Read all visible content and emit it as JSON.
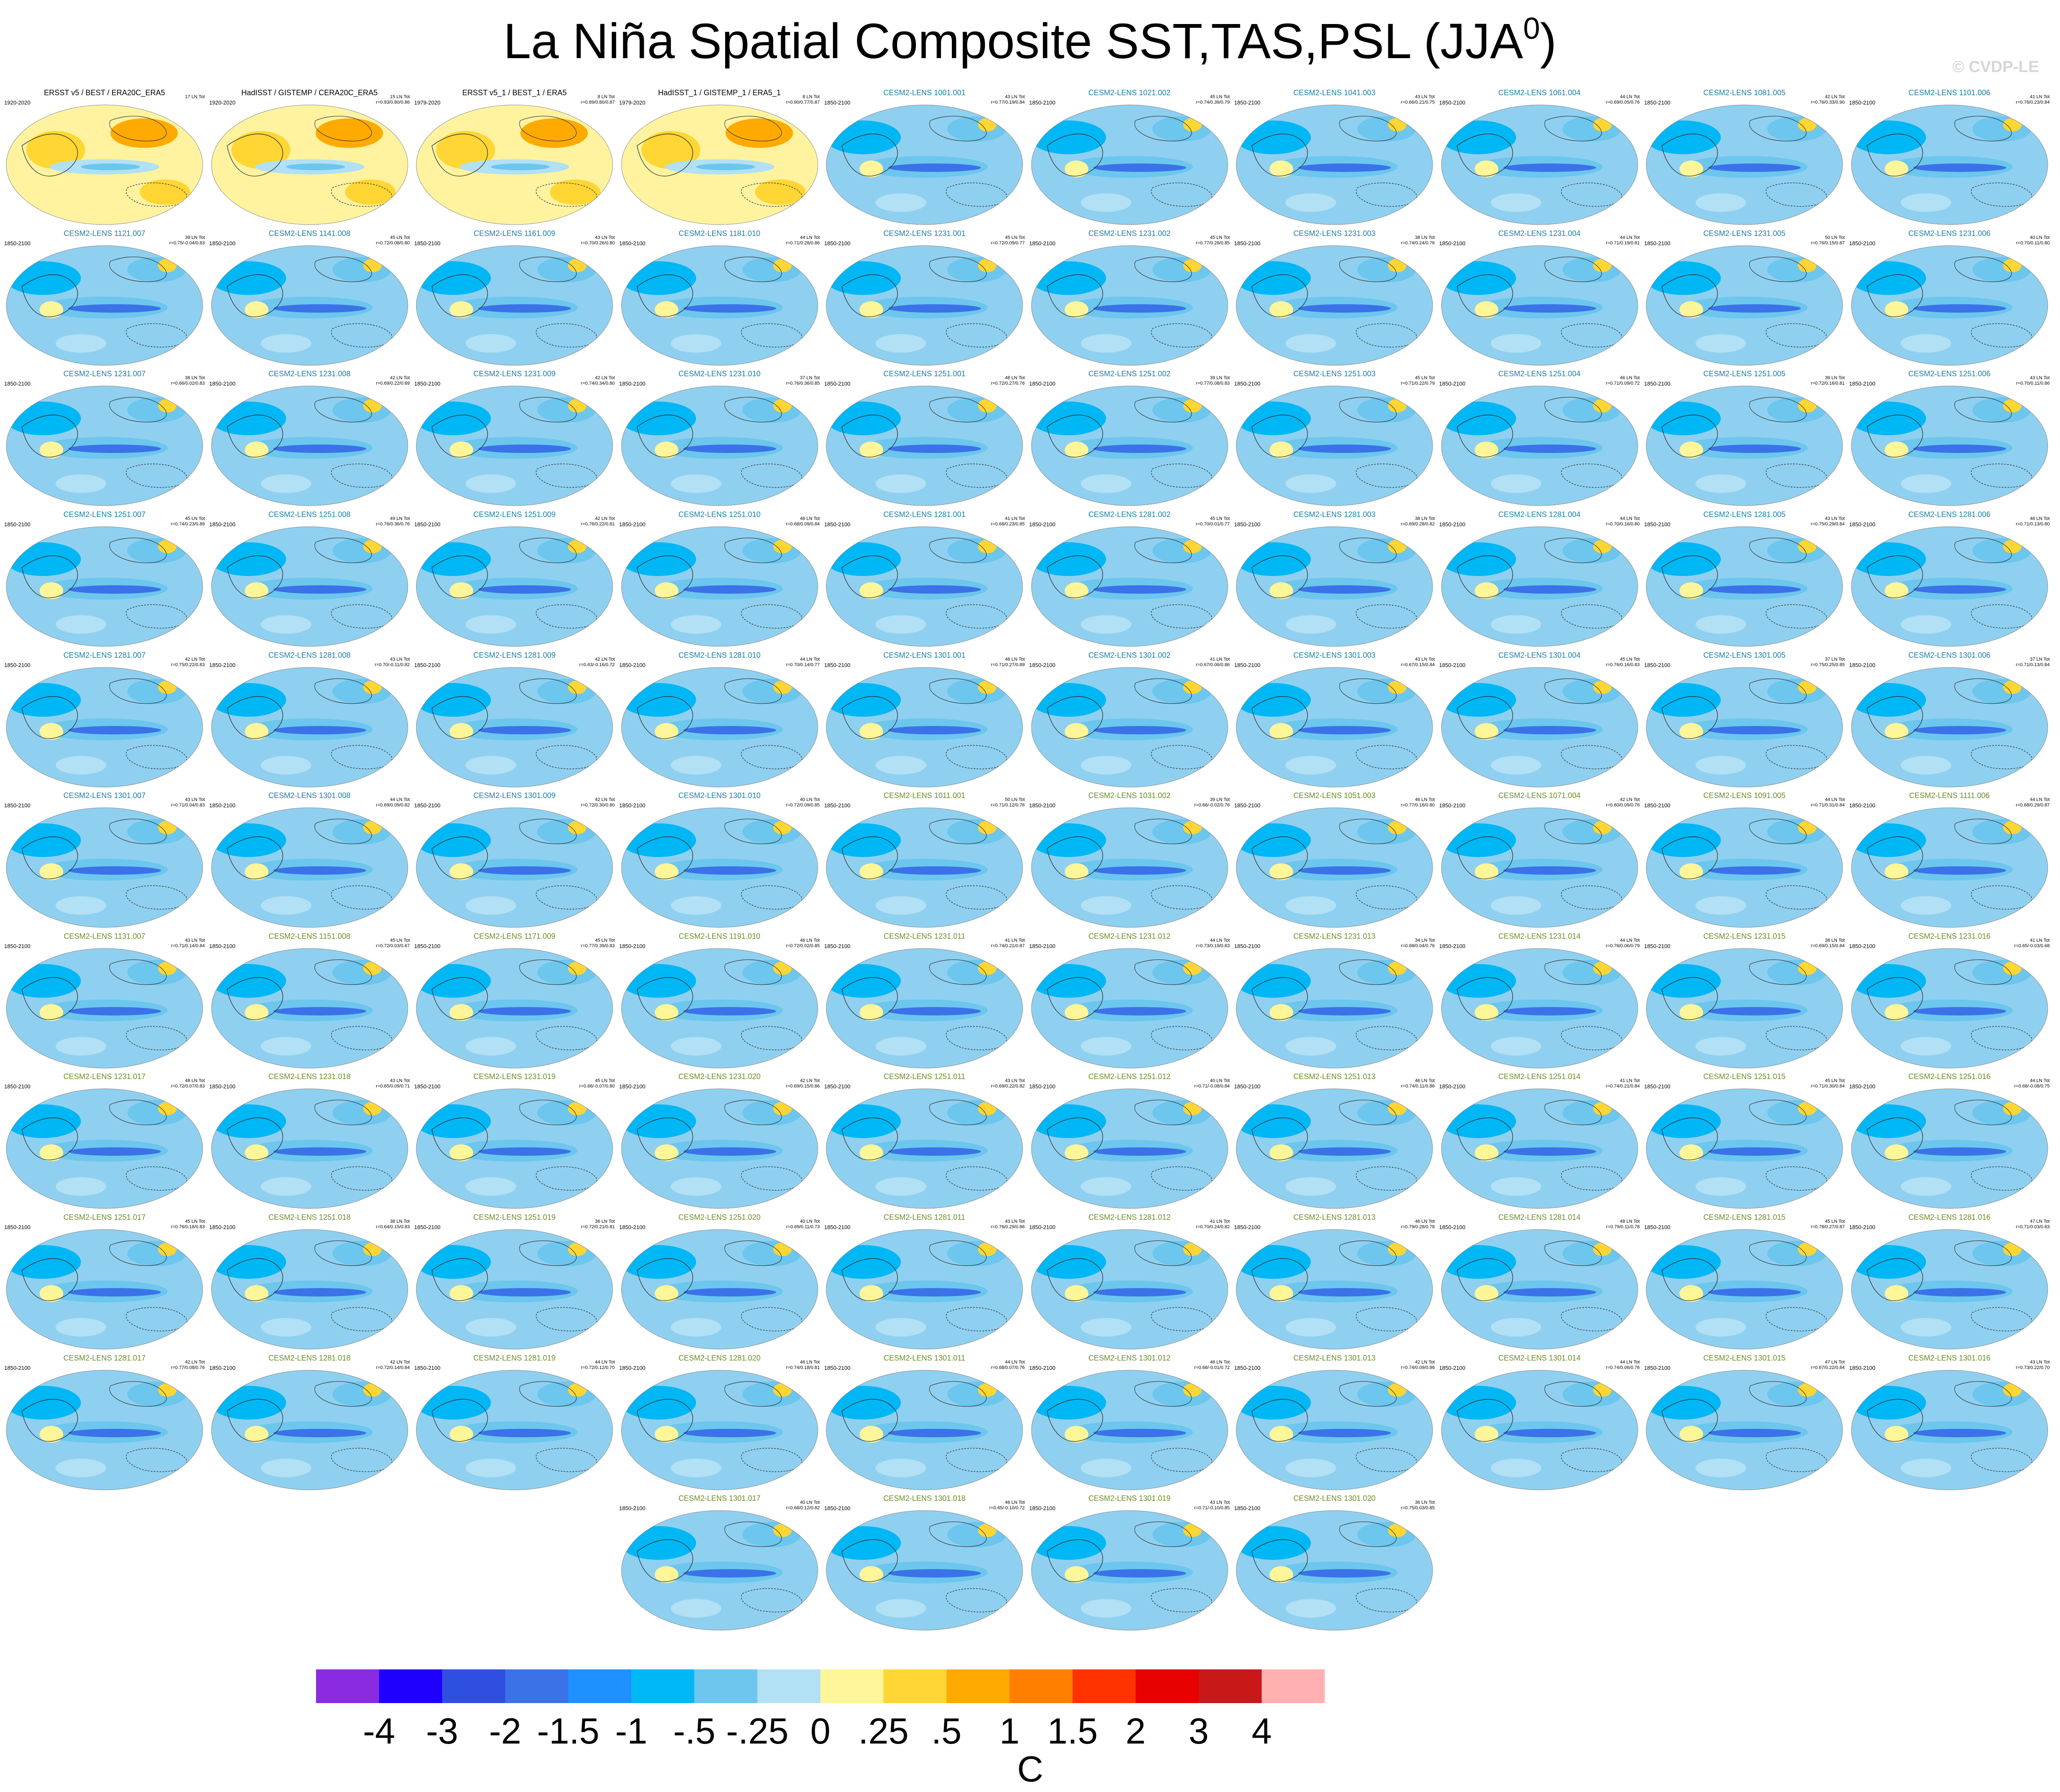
{
  "title": {
    "main": "La Niña Spatial Composite SST,TAS,PSL (JJA",
    "sup": "0",
    "close": ")"
  },
  "credit": "© CVDP-LE",
  "colorbar": {
    "unit": "C",
    "colors": [
      "#8a2be2",
      "#1f00ff",
      "#2f4fe0",
      "#3b72e8",
      "#1e90ff",
      "#00b7f5",
      "#6cc6ee",
      "#b2e0f4",
      "#fff599",
      "#ffd633",
      "#ffaa00",
      "#ff7f00",
      "#ff3300",
      "#e60000",
      "#c91818",
      "#ffb0b0"
    ],
    "labels": [
      "-4",
      "-3",
      "-2",
      "-1.5",
      "-1",
      "-.5",
      "-.25",
      "0",
      ".25",
      ".5",
      "1",
      "1.5",
      "2",
      "3",
      "4"
    ]
  },
  "chart_data": {
    "type": "map-panel-grid",
    "title": "La Niña Spatial Composite SST,TAS,PSL (JJA0)",
    "colorbar_unit": "C",
    "colorbar_levels": [
      -4,
      -3,
      -2,
      -1.5,
      -1,
      -0.5,
      -0.25,
      0,
      0.25,
      0.5,
      1,
      1.5,
      2,
      3,
      4
    ],
    "panels": [
      {
        "title": "ERSST v5 / BEST / ERA20C_ERA5",
        "years": "1920-2020",
        "stats": "17 LN Tot",
        "kind": "obs"
      },
      {
        "title": "HadISST / GISTEMP / CERA20C_ERA5",
        "years": "1920-2020",
        "stats": "15 LN Tot\nr=0.93/0.80/0.86",
        "kind": "obs"
      },
      {
        "title": "ERSST v5_1 / BEST_1 / ERA5",
        "years": "1979-2020",
        "stats": "8 LN Tot\nr=0.89/0.80/0.87",
        "kind": "obs"
      },
      {
        "title": "HadISST_1 / GISTEMP_1 / ERA5_1",
        "years": "1979-2020",
        "stats": "8 LN Tot\nr=0.90/0.77/0.87",
        "kind": "obs"
      },
      {
        "title": "CESM2-LENS 1001.001",
        "years": "1850-2100",
        "stats": "43 LN Tot\nr=0.77/0.19/0.84",
        "kind": "model"
      },
      {
        "title": "CESM2-LENS 1021.002",
        "years": "1850-2100",
        "stats": "45 LN Tot\nr=0.74/0.39/0.79",
        "kind": "model"
      },
      {
        "title": "CESM2-LENS 1041.003",
        "years": "1850-2100",
        "stats": "43 LN Tot\nr=0.66/0.21/0.75",
        "kind": "model"
      },
      {
        "title": "CESM2-LENS 1061.004",
        "years": "1850-2100",
        "stats": "44 LN Tot\nr=0.69/0.05/0.76",
        "kind": "model"
      },
      {
        "title": "CESM2-LENS 1081.005",
        "years": "1850-2100",
        "stats": "42 LN Tot\nr=0.76/0.33/0.90",
        "kind": "model"
      },
      {
        "title": "CESM2-LENS 1101.006",
        "years": "1850-2100",
        "stats": "41 LN Tot\nr=0.76/0.23/0.84",
        "kind": "model"
      },
      {
        "title": "CESM2-LENS 1121.007",
        "years": "1850-2100",
        "stats": "39 LN Tot\nr=0.75/-0.04/0.83",
        "kind": "model"
      },
      {
        "title": "CESM2-LENS 1141.008",
        "years": "1850-2100",
        "stats": "45 LN Tot\nr=0.72/0.08/0.80",
        "kind": "model"
      },
      {
        "title": "CESM2-LENS 1161.009",
        "years": "1850-2100",
        "stats": "43 LN Tot\nr=0.70/0.26/0.80",
        "kind": "model"
      },
      {
        "title": "CESM2-LENS 1181.010",
        "years": "1850-2100",
        "stats": "44 LN Tot\nr=0.71/0.28/0.86",
        "kind": "model"
      },
      {
        "title": "CESM2-LENS 1231.001",
        "years": "1850-2100",
        "stats": "45 LN Tot\nr=0.72/0.09/0.77",
        "kind": "model"
      },
      {
        "title": "CESM2-LENS 1231.002",
        "years": "1850-2100",
        "stats": "45 LN Tot\nr=0.77/0.26/0.85",
        "kind": "model"
      },
      {
        "title": "CESM2-LENS 1231.003",
        "years": "1850-2100",
        "stats": "38 LN Tot\nr=0.74/0.24/0.76",
        "kind": "model"
      },
      {
        "title": "CESM2-LENS 1231.004",
        "years": "1850-2100",
        "stats": "44 LN Tot\nr=0.71/0.19/0.81",
        "kind": "model"
      },
      {
        "title": "CESM2-LENS 1231.005",
        "years": "1850-2100",
        "stats": "50 LN Tot\nr=0.76/0.15/0.87",
        "kind": "model"
      },
      {
        "title": "CESM2-LENS 1231.006",
        "years": "1850-2100",
        "stats": "40 LN Tot\nr=0.70/0.11/0.80",
        "kind": "model"
      },
      {
        "title": "CESM2-LENS 1231.007",
        "years": "1850-2100",
        "stats": "38 LN Tot\nr=0.66/0.02/0.83",
        "kind": "model"
      },
      {
        "title": "CESM2-LENS 1231.008",
        "years": "1850-2100",
        "stats": "42 LN Tot\nr=0.69/0.22/0.69",
        "kind": "model"
      },
      {
        "title": "CESM2-LENS 1231.009",
        "years": "1850-2100",
        "stats": "42 LN Tot\nr=0.74/0.34/0.80",
        "kind": "model"
      },
      {
        "title": "CESM2-LENS 1231.010",
        "years": "1850-2100",
        "stats": "37 LN Tot\nr=0.76/0.36/0.85",
        "kind": "model"
      },
      {
        "title": "CESM2-LENS 1251.001",
        "years": "1850-2100",
        "stats": "48 LN Tot\nr=0.72/0.27/0.76",
        "kind": "model"
      },
      {
        "title": "CESM2-LENS 1251.002",
        "years": "1850-2100",
        "stats": "39 LN Tot\nr=0.77/0.08/0.83",
        "kind": "model"
      },
      {
        "title": "CESM2-LENS 1251.003",
        "years": "1850-2100",
        "stats": "45 LN Tot\nr=0.71/0.22/0.79",
        "kind": "model"
      },
      {
        "title": "CESM2-LENS 1251.004",
        "years": "1850-2100",
        "stats": "46 LN Tot\nr=0.71/0.09/0.72",
        "kind": "model"
      },
      {
        "title": "CESM2-LENS 1251.005",
        "years": "1850-2100",
        "stats": "39 LN Tot\nr=0.72/0.16/0.81",
        "kind": "model"
      },
      {
        "title": "CESM2-LENS 1251.006",
        "years": "1850-2100",
        "stats": "43 LN Tot\nr=0.70/0.11/0.86",
        "kind": "model"
      },
      {
        "title": "CESM2-LENS 1251.007",
        "years": "1850-2100",
        "stats": "45 LN Tot\nr=0.74/0.23/0.89",
        "kind": "model"
      },
      {
        "title": "CESM2-LENS 1251.008",
        "years": "1850-2100",
        "stats": "49 LN Tot\nr=0.76/0.36/0.76",
        "kind": "model"
      },
      {
        "title": "CESM2-LENS 1251.009",
        "years": "1850-2100",
        "stats": "42 LN Tot\nr=0.76/0.22/0.81",
        "kind": "model"
      },
      {
        "title": "CESM2-LENS 1251.010",
        "years": "1850-2100",
        "stats": "46 LN Tot\nr=0.68/0.09/0.84",
        "kind": "model"
      },
      {
        "title": "CESM2-LENS 1281.001",
        "years": "1850-2100",
        "stats": "41 LN Tot\nr=0.68/0.23/0.85",
        "kind": "model"
      },
      {
        "title": "CESM2-LENS 1281.002",
        "years": "1850-2100",
        "stats": "45 LN Tot\nr=0.70/0.01/0.77",
        "kind": "model"
      },
      {
        "title": "CESM2-LENS 1281.003",
        "years": "1850-2100",
        "stats": "38 LN Tot\nr=0.69/0.28/0.82",
        "kind": "model"
      },
      {
        "title": "CESM2-LENS 1281.004",
        "years": "1850-2100",
        "stats": "44 LN Tot\nr=0.70/0.16/0.80",
        "kind": "model"
      },
      {
        "title": "CESM2-LENS 1281.005",
        "years": "1850-2100",
        "stats": "43 LN Tot\nr=0.75/0.29/0.84",
        "kind": "model"
      },
      {
        "title": "CESM2-LENS 1281.006",
        "years": "1850-2100",
        "stats": "46 LN Tot\nr=0.71/0.13/0.80",
        "kind": "model"
      },
      {
        "title": "CESM2-LENS 1281.007",
        "years": "1850-2100",
        "stats": "42 LN Tot\nr=0.75/0.22/0.83",
        "kind": "model"
      },
      {
        "title": "CESM2-LENS 1281.008",
        "years": "1850-2100",
        "stats": "43 LN Tot\nr=0.70/-0.11/0.82",
        "kind": "model"
      },
      {
        "title": "CESM2-LENS 1281.009",
        "years": "1850-2100",
        "stats": "42 LN Tot\nr=0.63/-0.16/0.72",
        "kind": "model"
      },
      {
        "title": "CESM2-LENS 1281.010",
        "years": "1850-2100",
        "stats": "44 LN Tot\nr=0.70/0.14/0.77",
        "kind": "model"
      },
      {
        "title": "CESM2-LENS 1301.001",
        "years": "1850-2100",
        "stats": "48 LN Tot\nr=0.71/0.27/0.89",
        "kind": "model"
      },
      {
        "title": "CESM2-LENS 1301.002",
        "years": "1850-2100",
        "stats": "41 LN Tot\nr=0.67/0.06/0.86",
        "kind": "model"
      },
      {
        "title": "CESM2-LENS 1301.003",
        "years": "1850-2100",
        "stats": "43 LN Tot\nr=0.67/0.15/0.84",
        "kind": "model"
      },
      {
        "title": "CESM2-LENS 1301.004",
        "years": "1850-2100",
        "stats": "45 LN Tot\nr=0.76/0.16/0.83",
        "kind": "model"
      },
      {
        "title": "CESM2-LENS 1301.005",
        "years": "1850-2100",
        "stats": "37 LN Tot\nr=0.75/0.25/0.85",
        "kind": "model"
      },
      {
        "title": "CESM2-LENS 1301.006",
        "years": "1850-2100",
        "stats": "37 LN Tot\nr=0.71/0.13/0.84",
        "kind": "model"
      },
      {
        "title": "CESM2-LENS 1301.007",
        "years": "1850-2100",
        "stats": "43 LN Tot\nr=0.71/0.04/0.83",
        "kind": "model"
      },
      {
        "title": "CESM2-LENS 1301.008",
        "years": "1850-2100",
        "stats": "44 LN Tot\nr=0.69/0.09/0.82",
        "kind": "model"
      },
      {
        "title": "CESM2-LENS 1301.009",
        "years": "1850-2100",
        "stats": "42 LN Tot\nr=0.72/0.30/0.80",
        "kind": "model"
      },
      {
        "title": "CESM2-LENS 1301.010",
        "years": "1850-2100",
        "stats": "40 LN Tot\nr=0.72/0.09/0.85",
        "kind": "model"
      },
      {
        "title": "CESM2-LENS 1011.001",
        "years": "1850-2100",
        "stats": "50 LN Tot\nr=0.71/0.12/0.76",
        "kind": "olive"
      },
      {
        "title": "CESM2-LENS 1031.002",
        "years": "1850-2100",
        "stats": "39 LN Tot\nr=0.66/-0.02/0.76",
        "kind": "olive"
      },
      {
        "title": "CESM2-LENS 1051.003",
        "years": "1850-2100",
        "stats": "46 LN Tot\nr=0.77/0.16/0.80",
        "kind": "olive"
      },
      {
        "title": "CESM2-LENS 1071.004",
        "years": "1850-2100",
        "stats": "42 LN Tot\nr=0.60/0.09/0.76",
        "kind": "olive"
      },
      {
        "title": "CESM2-LENS 1091.005",
        "years": "1850-2100",
        "stats": "44 LN Tot\nr=0.71/0.31/0.84",
        "kind": "olive"
      },
      {
        "title": "CESM2-LENS 1111.006",
        "years": "1850-2100",
        "stats": "44 LN Tot\nr=0.68/0.29/0.87",
        "kind": "olive"
      },
      {
        "title": "CESM2-LENS 1131.007",
        "years": "1850-2100",
        "stats": "43 LN Tot\nr=0.71/0.14/0.84",
        "kind": "olive"
      },
      {
        "title": "CESM2-LENS 1151.008",
        "years": "1850-2100",
        "stats": "45 LN Tot\nr=0.72/0.03/0.67",
        "kind": "olive"
      },
      {
        "title": "CESM2-LENS 1171.009",
        "years": "1850-2100",
        "stats": "45 LN Tot\nr=0.77/0.39/0.83",
        "kind": "olive"
      },
      {
        "title": "CESM2-LENS 1191.010",
        "years": "1850-2100",
        "stats": "46 LN Tot\nr=0.72/0.02/0.85",
        "kind": "olive"
      },
      {
        "title": "CESM2-LENS 1231.011",
        "years": "1850-2100",
        "stats": "41 LN Tot\nr=0.74/0.21/0.87",
        "kind": "olive"
      },
      {
        "title": "CESM2-LENS 1231.012",
        "years": "1850-2100",
        "stats": "44 LN Tot\nr=0.73/0.19/0.83",
        "kind": "olive"
      },
      {
        "title": "CESM2-LENS 1231.013",
        "years": "1850-2100",
        "stats": "34 LN Tot\nr=0.68/0.04/0.76",
        "kind": "olive"
      },
      {
        "title": "CESM2-LENS 1231.014",
        "years": "1850-2100",
        "stats": "44 LN Tot\nr=0.76/0.06/0.79",
        "kind": "olive"
      },
      {
        "title": "CESM2-LENS 1231.015",
        "years": "1850-2100",
        "stats": "38 LN Tot\nr=0.69/0.15/0.84",
        "kind": "olive"
      },
      {
        "title": "CESM2-LENS 1231.016",
        "years": "1850-2100",
        "stats": "41 LN Tot\nr=0.65/-0.03/0.68",
        "kind": "olive"
      },
      {
        "title": "CESM2-LENS 1231.017",
        "years": "1850-2100",
        "stats": "48 LN Tot\nr=0.72/0.07/0.83",
        "kind": "olive"
      },
      {
        "title": "CESM2-LENS 1231.018",
        "years": "1850-2100",
        "stats": "43 LN Tot\nr=0.65/0.09/0.71",
        "kind": "olive"
      },
      {
        "title": "CESM2-LENS 1231.019",
        "years": "1850-2100",
        "stats": "45 LN Tot\nr=0.66/-0.07/0.80",
        "kind": "olive"
      },
      {
        "title": "CESM2-LENS 1231.020",
        "years": "1850-2100",
        "stats": "42 LN Tot\nr=0.69/0.15/0.86",
        "kind": "olive"
      },
      {
        "title": "CESM2-LENS 1251.011",
        "years": "1850-2100",
        "stats": "43 LN Tot\nr=0.69/0.22/0.82",
        "kind": "olive"
      },
      {
        "title": "CESM2-LENS 1251.012",
        "years": "1850-2100",
        "stats": "40 LN Tot\nr=0.71/-0.08/0.84",
        "kind": "olive"
      },
      {
        "title": "CESM2-LENS 1251.013",
        "years": "1850-2100",
        "stats": "46 LN Tot\nr=0.74/0.11/0.86",
        "kind": "olive"
      },
      {
        "title": "CESM2-LENS 1251.014",
        "years": "1850-2100",
        "stats": "41 LN Tot\nr=0.74/0.21/0.84",
        "kind": "olive"
      },
      {
        "title": "CESM2-LENS 1251.015",
        "years": "1850-2100",
        "stats": "45 LN Tot\nr=0.71/0.30/0.84",
        "kind": "olive"
      },
      {
        "title": "CESM2-LENS 1251.016",
        "years": "1850-2100",
        "stats": "44 LN Tot\nr=0.68/-0.08/0.75",
        "kind": "olive"
      },
      {
        "title": "CESM2-LENS 1251.017",
        "years": "1850-2100",
        "stats": "45 LN Tot\nr=0.76/0.18/0.83",
        "kind": "olive"
      },
      {
        "title": "CESM2-LENS 1251.018",
        "years": "1850-2100",
        "stats": "38 LN Tot\nr=0.64/0.15/0.83",
        "kind": "olive"
      },
      {
        "title": "CESM2-LENS 1251.019",
        "years": "1850-2100",
        "stats": "36 LN Tot\nr=0.72/0.21/0.81",
        "kind": "olive"
      },
      {
        "title": "CESM2-LENS 1251.020",
        "years": "1850-2100",
        "stats": "40 LN Tot\nr=0.69/0.11/0.73",
        "kind": "olive"
      },
      {
        "title": "CESM2-LENS 1281.011",
        "years": "1850-2100",
        "stats": "43 LN Tot\nr=0.76/0.29/0.86",
        "kind": "olive"
      },
      {
        "title": "CESM2-LENS 1281.012",
        "years": "1850-2100",
        "stats": "41 LN Tot\nr=0.70/0.24/0.82",
        "kind": "olive"
      },
      {
        "title": "CESM2-LENS 1281.013",
        "years": "1850-2100",
        "stats": "46 LN Tot\nr=0.79/0.28/0.78",
        "kind": "olive"
      },
      {
        "title": "CESM2-LENS 1281.014",
        "years": "1850-2100",
        "stats": "48 LN Tot\nr=0.79/0.11/0.78",
        "kind": "olive"
      },
      {
        "title": "CESM2-LENS 1281.015",
        "years": "1850-2100",
        "stats": "45 LN Tot\nr=0.78/0.27/0.87",
        "kind": "olive"
      },
      {
        "title": "CESM2-LENS 1281.016",
        "years": "1850-2100",
        "stats": "47 LN Tot\nr=0.71/0.03/0.83",
        "kind": "olive"
      },
      {
        "title": "CESM2-LENS 1281.017",
        "years": "1850-2100",
        "stats": "42 LN Tot\nr=0.77/0.08/0.76",
        "kind": "olive"
      },
      {
        "title": "CESM2-LENS 1281.018",
        "years": "1850-2100",
        "stats": "42 LN Tot\nr=0.72/0.14/0.84",
        "kind": "olive"
      },
      {
        "title": "CESM2-LENS 1281.019",
        "years": "1850-2100",
        "stats": "44 LN Tot\nr=0.72/0.12/0.70",
        "kind": "olive"
      },
      {
        "title": "CESM2-LENS 1281.020",
        "years": "1850-2100",
        "stats": "46 LN Tot\nr=0.74/0.18/0.81",
        "kind": "olive"
      },
      {
        "title": "CESM2-LENS 1301.011",
        "years": "1850-2100",
        "stats": "44 LN Tot\nr=0.68/0.07/0.76",
        "kind": "olive"
      },
      {
        "title": "CESM2-LENS 1301.012",
        "years": "1850-2100",
        "stats": "46 LN Tot\nr=0.68/-0.01/0.72",
        "kind": "olive"
      },
      {
        "title": "CESM2-LENS 1301.013",
        "years": "1850-2100",
        "stats": "42 LN Tot\nr=0.74/0.09/0.86",
        "kind": "olive"
      },
      {
        "title": "CESM2-LENS 1301.014",
        "years": "1850-2100",
        "stats": "44 LN Tot\nr=0.74/0.06/0.76",
        "kind": "olive"
      },
      {
        "title": "CESM2-LENS 1301.015",
        "years": "1850-2100",
        "stats": "47 LN Tot\nr=0.67/0.22/0.84",
        "kind": "olive"
      },
      {
        "title": "CESM2-LENS 1301.016",
        "years": "1850-2100",
        "stats": "43 LN Tot\nr=0.73/0.22/0.70",
        "kind": "olive"
      },
      {
        "title": "CESM2-LENS 1301.017",
        "years": "1850-2100",
        "stats": "40 LN Tot\nr=0.68/0.12/0.82",
        "kind": "olive"
      },
      {
        "title": "CESM2-LENS 1301.018",
        "years": "1850-2100",
        "stats": "46 LN Tot\nr=0.65/-0.10/0.72",
        "kind": "olive"
      },
      {
        "title": "CESM2-LENS 1301.019",
        "years": "1850-2100",
        "stats": "43 LN Tot\nr=0.71/-0.10/0.85",
        "kind": "olive"
      },
      {
        "title": "CESM2-LENS 1301.020",
        "years": "1850-2100",
        "stats": "36 LN Tot\nr=0.75/0.03/0.85",
        "kind": "olive"
      }
    ]
  }
}
